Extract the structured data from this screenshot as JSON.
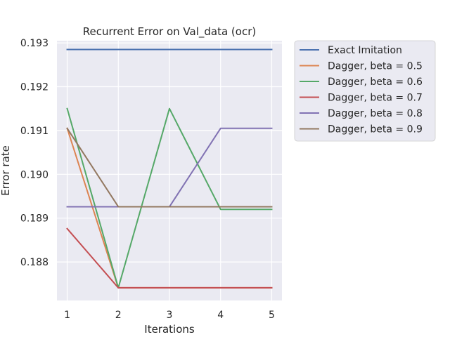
{
  "chart_data": {
    "type": "line",
    "title": "Recurrent Error on Val_data (ocr)",
    "xlabel": "Iterations",
    "ylabel": "Error rate",
    "x": [
      1,
      2,
      3,
      4,
      5
    ],
    "xlim": [
      0.8,
      5.2
    ],
    "ylim": [
      0.18712,
      0.19305
    ],
    "xticks": [
      1,
      2,
      3,
      4,
      5
    ],
    "yticks": [
      0.188,
      0.189,
      0.19,
      0.191,
      0.192,
      0.193
    ],
    "ytick_labels": [
      "0.188",
      "0.189",
      "0.190",
      "0.191",
      "0.192",
      "0.193"
    ],
    "grid": true,
    "background": "#eaeaf2",
    "legend_position": "outside-right",
    "series": [
      {
        "name": "Exact Imitation",
        "color": "#4c72b0",
        "values": [
          0.19285,
          0.19285,
          0.19285,
          0.19285,
          0.19285
        ]
      },
      {
        "name": "Dagger, beta = 0.5",
        "color": "#dd8452",
        "values": [
          0.19105,
          0.18741,
          0.18741,
          0.18741,
          0.18741
        ]
      },
      {
        "name": "Dagger, beta = 0.6",
        "color": "#55a868",
        "values": [
          0.1915,
          0.18741,
          0.1915,
          0.1892,
          0.1892
        ]
      },
      {
        "name": "Dagger, beta = 0.7",
        "color": "#c44e52",
        "values": [
          0.18876,
          0.18741,
          0.18741,
          0.18741,
          0.18741
        ]
      },
      {
        "name": "Dagger, beta = 0.8",
        "color": "#8172b3",
        "values": [
          0.18926,
          0.18926,
          0.18926,
          0.19105,
          0.19105
        ]
      },
      {
        "name": "Dagger, beta = 0.9",
        "color": "#937860",
        "values": [
          0.19105,
          0.18926,
          0.18926,
          0.18926,
          0.18926
        ]
      }
    ]
  }
}
